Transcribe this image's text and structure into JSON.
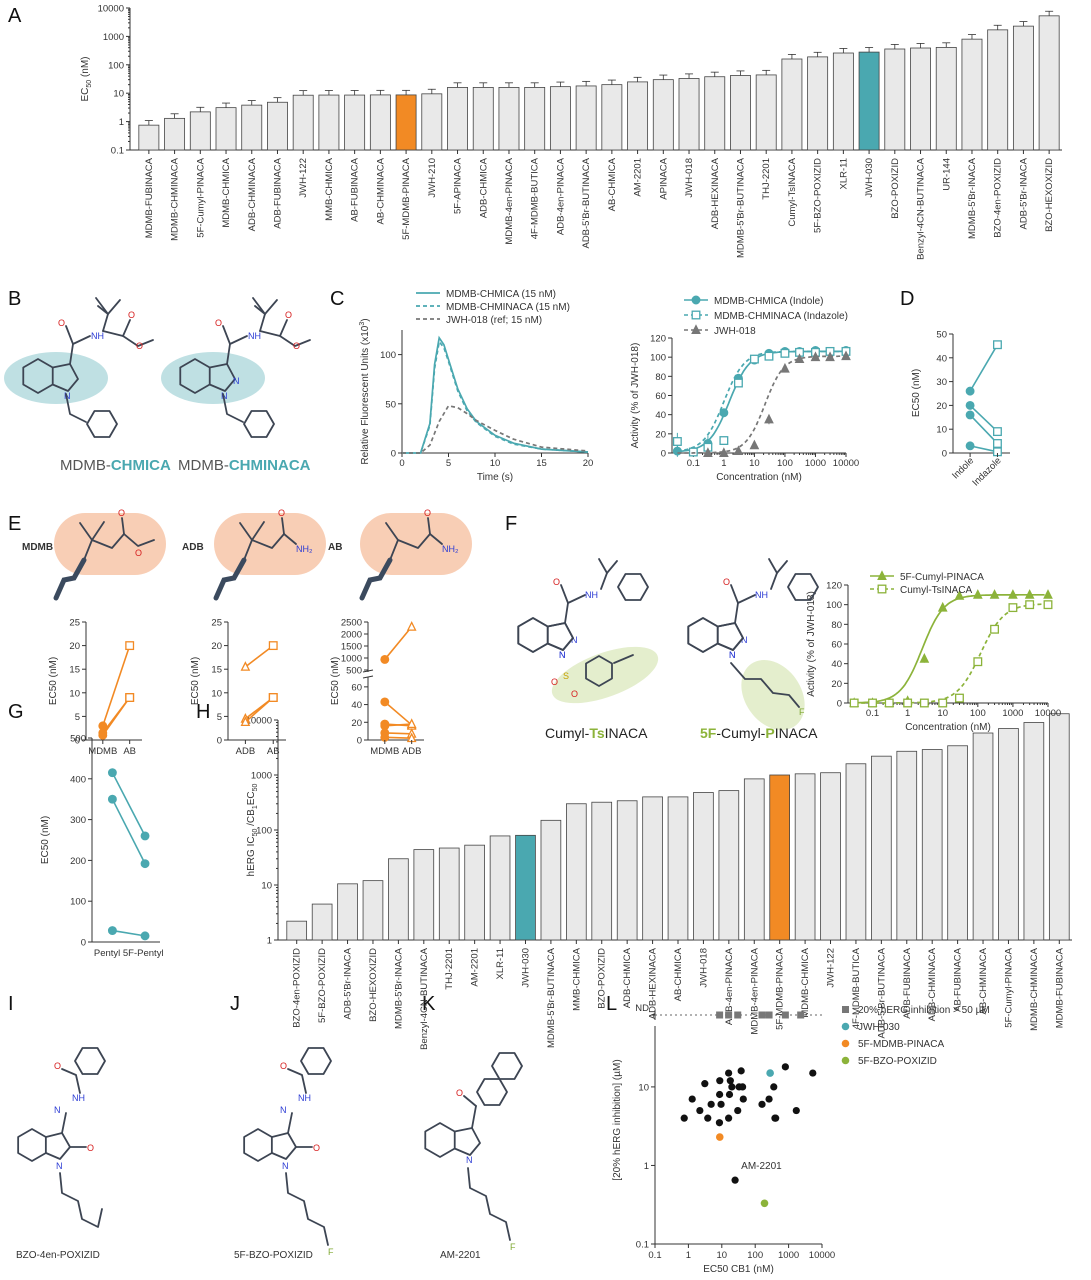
{
  "panels": {
    "A": "A",
    "B": "B",
    "C": "C",
    "D": "D",
    "E": "E",
    "F": "F",
    "G": "G",
    "H": "H",
    "I": "I",
    "J": "J",
    "K": "K",
    "L": "L"
  },
  "colors": {
    "teal": "#4aa8b0",
    "orange": "#f28a24",
    "green": "#8cb33a",
    "gray": "#e9e9e9",
    "black": "#111111",
    "darkgray": "#777777",
    "peach": "#f7c6a8",
    "lightgreen": "#e4eecd",
    "lightteal": "#a9d5da"
  },
  "labels": {
    "B_left": {
      "prefix": "MDMB-",
      "suffix": "CHMICA"
    },
    "B_right": {
      "prefix": "MDMB-",
      "suffix": "CHMINACA"
    },
    "E_mdmb": "MDMB",
    "E_adb": "ADB",
    "E_ab": "AB",
    "F_left": {
      "p1": "Cumyl-",
      "p2": "Ts",
      "p3": "INACA"
    },
    "F_right": {
      "p1": "5F",
      "p2": "-Cumyl-",
      "p3": "P",
      "p4": "INACA"
    },
    "I": "BZO-4en-POXIZID",
    "J": "5F-BZO-POXIZID",
    "K": "AM-2201"
  },
  "chart_data": [
    {
      "panel": "A",
      "type": "bar",
      "ylabel": "EC50 (nM)",
      "yscale": "log",
      "ylim": [
        0.1,
        10000
      ],
      "yticks": [
        "0.1",
        "1",
        "10",
        "100",
        "1000",
        "10000"
      ],
      "categories": [
        "MDMB-FUBINACA",
        "MDMB-CHMINACA",
        "5F-Cumyl-PINACA",
        "MDMB-CHMICA",
        "ADB-CHMINACA",
        "ADB-FUBINACA",
        "JWH-122",
        "MMB-CHMICA",
        "AB-FUBINACA",
        "AB-CHMINACA",
        "5F-MDMB-PINACA",
        "JWH-210",
        "5F-APINACA",
        "ADB-CHMICA",
        "MDMB-4en-PINACA",
        "4F-MDMB-BUTICA",
        "ADB-4en-PINACA",
        "ADB-5'Br-BUTINACA",
        "AB-CHMICA",
        "AM-2201",
        "APINACA",
        "JWH-018",
        "ADB-HEXINACA",
        "MDMB-5'Br-BUTINACA",
        "THJ-2201",
        "Cumyl-TsINACA",
        "5F-BZO-POXIZID",
        "XLR-11",
        "JWH-030",
        "BZO-POXIZID",
        "Benzyl-4CN-BUTINACA",
        "UR-144",
        "MDMB-5'Br-INACA",
        "BZO-4en-POXIZID",
        "ADB-5'Br-INACA",
        "BZO-HEXOXIZID"
      ],
      "values": [
        0.75,
        1.3,
        2.2,
        3.1,
        3.8,
        4.8,
        8.5,
        8.6,
        8.6,
        8.7,
        8.7,
        9.5,
        16,
        16,
        16,
        16,
        17,
        18,
        20,
        25,
        30,
        33,
        38,
        42,
        44,
        160,
        190,
        260,
        280,
        360,
        390,
        410,
        800,
        1700,
        2300,
        5300
      ],
      "highlight": {
        "5F-MDMB-PINACA": "orange",
        "JWH-030": "teal"
      }
    },
    {
      "panel": "C-left",
      "type": "line",
      "ylabel": "Relative Fluorescent Units (x10³)",
      "xlabel": "Time (s)",
      "xlim": [
        0,
        20
      ],
      "ylim": [
        0,
        125
      ],
      "xticks": [
        "0",
        "5",
        "10",
        "15",
        "20"
      ],
      "yticks": [
        "0",
        "50",
        "100"
      ],
      "series": [
        {
          "name": "MDMB-CHMICA (15 nM)",
          "style": "solid",
          "color": "teal",
          "x": [
            0,
            2,
            3,
            3.5,
            4,
            4.5,
            5,
            6,
            7,
            8,
            10,
            12,
            15,
            20
          ],
          "y": [
            0,
            0,
            30,
            90,
            117,
            110,
            95,
            65,
            45,
            32,
            18,
            10,
            4,
            1
          ]
        },
        {
          "name": "MDMB-CHMINACA (15 nM)",
          "style": "dashed",
          "color": "teal",
          "x": [
            0,
            2,
            3,
            3.5,
            4,
            4.5,
            5,
            6,
            7,
            8,
            10,
            12,
            15,
            20
          ],
          "y": [
            0,
            0,
            28,
            86,
            113,
            107,
            93,
            63,
            43,
            31,
            17,
            9,
            4,
            1
          ]
        },
        {
          "name": "JWH-018 (ref; 15 nM)",
          "style": "dashed",
          "color": "darkgray",
          "x": [
            0,
            2,
            3,
            4,
            5,
            6,
            7,
            8,
            10,
            12,
            15,
            20
          ],
          "y": [
            0,
            0,
            8,
            32,
            48,
            46,
            40,
            33,
            23,
            14,
            6,
            2
          ]
        }
      ]
    },
    {
      "panel": "C-right",
      "type": "line",
      "ylabel": "Activity (% of JWH-018)",
      "xlabel": "Concentration (nM)",
      "xscale": "log",
      "xlim": [
        0.02,
        10000
      ],
      "ylim": [
        0,
        120
      ],
      "xticks": [
        "0.1",
        "1",
        "10",
        "100",
        "1000",
        "10000"
      ],
      "yticks": [
        "0",
        "20",
        "40",
        "60",
        "80",
        "100",
        "120"
      ],
      "series": [
        {
          "name": "MDMB-CHMICA (Indole)",
          "marker": "circle",
          "style": "solid",
          "color": "teal",
          "x": [
            0.03,
            0.1,
            0.3,
            1,
            3,
            10,
            30,
            100,
            300,
            1000,
            3000,
            10000
          ],
          "y": [
            2,
            2,
            10,
            42,
            78,
            97,
            104,
            106,
            106,
            107,
            106,
            107
          ],
          "errors": [
            6,
            3,
            8,
            4,
            3,
            2,
            2,
            2,
            2,
            2,
            2,
            2
          ]
        },
        {
          "name": "MDMB-CHMINACA (Indazole)",
          "marker": "square",
          "style": "dashed",
          "color": "teal",
          "x": [
            0.03,
            0.1,
            0.3,
            1,
            3,
            10,
            30,
            100,
            300,
            1000,
            3000,
            10000
          ],
          "y": [
            12,
            1,
            6,
            13,
            73,
            98,
            101,
            104,
            105,
            105,
            106,
            106
          ],
          "errors": [
            9,
            2,
            5,
            4,
            3,
            2,
            2,
            2,
            2,
            2,
            2,
            2
          ]
        },
        {
          "name": "JWH-018",
          "marker": "triangle",
          "style": "dashed",
          "color": "darkgray",
          "x": [
            0.3,
            1,
            3,
            10,
            30,
            100,
            300,
            1000,
            3000,
            10000
          ],
          "y": [
            0,
            0,
            2,
            8,
            35,
            88,
            98,
            100,
            100,
            101
          ],
          "errors": [
            2,
            2,
            2,
            3,
            5,
            4,
            3,
            2,
            2,
            2
          ]
        }
      ]
    },
    {
      "panel": "D",
      "type": "scatter",
      "ylabel": "EC50 (nM)",
      "categories": [
        "Indole",
        "Indazole"
      ],
      "ylim": [
        0,
        50
      ],
      "yticks": [
        "0",
        "10",
        "20",
        "30",
        "40",
        "50"
      ],
      "pairs": [
        [
          26,
          45.5
        ],
        [
          20,
          9
        ],
        [
          16,
          4
        ],
        [
          3,
          0.5
        ]
      ]
    },
    {
      "panel": "E-1",
      "type": "scatter",
      "ylabel": "EC50 (nM)",
      "categories": [
        "MDMB",
        "AB"
      ],
      "ylim": [
        0,
        25
      ],
      "yticks": [
        "0",
        "5",
        "10",
        "15",
        "20",
        "25"
      ],
      "pairs": [
        [
          3,
          20
        ],
        [
          1.5,
          9
        ],
        [
          1,
          9
        ]
      ]
    },
    {
      "panel": "E-2",
      "type": "scatter",
      "ylabel": "EC50 (nM)",
      "categories": [
        "ADB",
        "AB"
      ],
      "ylim": [
        0,
        25
      ],
      "yticks": [
        "0",
        "5",
        "10",
        "15",
        "20",
        "25"
      ],
      "pairs": [
        [
          15.5,
          20
        ],
        [
          4.5,
          9
        ],
        [
          3.8,
          9
        ]
      ]
    },
    {
      "panel": "E-3",
      "type": "scatter",
      "ylabel": "EC50 (nM)",
      "categories": [
        "MDMB",
        "ADB"
      ],
      "yticks": [
        "0",
        "20",
        "40",
        "60",
        "500",
        "1000",
        "1500",
        "2000",
        "2500"
      ],
      "pairs": [
        [
          940,
          2300
        ],
        [
          43,
          17
        ],
        [
          18,
          16
        ],
        [
          16,
          18
        ],
        [
          8,
          7
        ],
        [
          3,
          2
        ]
      ]
    },
    {
      "panel": "F",
      "type": "line",
      "ylabel": "Activity (% of JWH-018)",
      "xlabel": "Concentration (nM)",
      "xscale": "log",
      "xlim": [
        0.02,
        10000
      ],
      "ylim": [
        0,
        120
      ],
      "xticks": [
        "0.01",
        "0.1",
        "1",
        "10",
        "100",
        "1000",
        "10000"
      ],
      "yticks": [
        "0",
        "20",
        "40",
        "60",
        "80",
        "100",
        "120"
      ],
      "series": [
        {
          "name": "5F-Cumyl-PINACA",
          "marker": "triangle",
          "style": "solid",
          "color": "green",
          "x": [
            0.03,
            0.1,
            0.3,
            1,
            3,
            10,
            30,
            100,
            300,
            1000,
            3000,
            10000
          ],
          "y": [
            0,
            0,
            0,
            2,
            45,
            97,
            109,
            110,
            110,
            110,
            110,
            110
          ],
          "errors": [
            1,
            1,
            1,
            1,
            4,
            2,
            2,
            2,
            2,
            2,
            2,
            2
          ]
        },
        {
          "name": "Cumyl-TsINACA",
          "marker": "square",
          "style": "dashed",
          "color": "green",
          "x": [
            0.03,
            0.1,
            0.3,
            1,
            3,
            10,
            30,
            100,
            300,
            1000,
            3000,
            10000
          ],
          "y": [
            0,
            0,
            0,
            0,
            0,
            0,
            5,
            42,
            75,
            97,
            100,
            100
          ],
          "errors": [
            1,
            1,
            1,
            1,
            1,
            1,
            2,
            4,
            3,
            2,
            2,
            2
          ]
        }
      ]
    },
    {
      "panel": "G",
      "type": "scatter",
      "ylabel": "EC50 (nM)",
      "categories": [
        "Pentyl",
        "5F-Pentyl"
      ],
      "ylim": [
        0,
        500
      ],
      "yticks": [
        "0",
        "100",
        "200",
        "300",
        "400",
        "500"
      ],
      "pairs": [
        [
          415,
          260
        ],
        [
          350,
          192
        ],
        [
          28,
          15
        ]
      ]
    },
    {
      "panel": "H",
      "type": "bar",
      "ylabel": "hERG IC50 /CB1EC50",
      "yscale": "log",
      "ylim": [
        1,
        10000
      ],
      "yticks": [
        "1",
        "10",
        "100",
        "1000",
        "10000"
      ],
      "categories": [
        "BZO-4en-POXIZID",
        "5F-BZO-POXIZID",
        "ADB-5'Br-INACA",
        "BZO-HEXOXIZID",
        "MDMB-5'Br-INACA",
        "Benzyl-4CN-BUTINACA",
        "THJ-2201",
        "AM-2201",
        "XLR-11",
        "JWH-030",
        "MDMB-5'Br-BUTINACA",
        "MMB-CHMICA",
        "BZO-POXIZID",
        "ADB-CHMICA",
        "ADB-HEXINACA",
        "AB-CHMICA",
        "JWH-018",
        "ADB-4en-PINACA",
        "MDMB-4en-PINACA",
        "5F-MDMB-PINACA",
        "MDMB-CHMICA",
        "JWH-122",
        "4F-MDMB-BUTICA",
        "ADB-5'Br-BUTINACA",
        "ADB-FUBINACA",
        "ADB-CHMINACA",
        "AB-FUBINACA",
        "AB-CHMINACA",
        "5F-Cumyl-PINACA",
        "MDMB-CHMINACA",
        "MDMB-FUBINACA"
      ],
      "values": [
        2.2,
        4.5,
        10.5,
        12,
        30,
        44,
        47,
        53,
        78,
        80,
        150,
        300,
        320,
        340,
        400,
        400,
        480,
        520,
        850,
        1000,
        1050,
        1100,
        1600,
        2200,
        2700,
        2900,
        3400,
        5800,
        7000,
        9000,
        13000
      ],
      "highlight": {
        "5F-MDMB-PINACA": "orange",
        "JWH-030": "teal"
      }
    },
    {
      "panel": "L",
      "type": "scatter",
      "ylabel": "[20% hERG inhibition] (µM)",
      "xlabel": "EC50 CB1 (nM)",
      "xscale": "log",
      "yscale": "log",
      "xlim": [
        0.1,
        10000
      ],
      "ylim": [
        0.1,
        50
      ],
      "xticks": [
        "0.1",
        "1",
        "10",
        "100",
        "1000",
        "10000"
      ],
      "yticks": [
        "0.1",
        "1",
        "10"
      ],
      "nd_label": "ND",
      "annotation": "AM-2201",
      "legend": [
        "20% hERG inhibition > 50 µM",
        "JWH-030",
        "5F-MDMB-PINACA",
        "5F-BZO-POXIZID"
      ],
      "nd_points_x": [
        8.6,
        16,
        30,
        160,
        260,
        800,
        2300
      ],
      "points": [
        [
          0.75,
          4
        ],
        [
          1.3,
          7
        ],
        [
          2.2,
          5
        ],
        [
          3.1,
          11
        ],
        [
          3.8,
          4
        ],
        [
          4.8,
          6
        ],
        [
          8.5,
          3.5
        ],
        [
          8.6,
          8
        ],
        [
          8.7,
          12
        ],
        [
          9.5,
          6
        ],
        [
          16,
          15
        ],
        [
          16,
          4
        ],
        [
          17,
          8
        ],
        [
          18,
          12
        ],
        [
          20,
          10
        ],
        [
          30,
          5
        ],
        [
          33,
          10
        ],
        [
          38,
          16
        ],
        [
          42,
          10
        ],
        [
          44,
          7
        ],
        [
          160,
          6
        ],
        [
          260,
          7
        ],
        [
          360,
          10
        ],
        [
          390,
          4
        ],
        [
          410,
          4
        ],
        [
          800,
          18
        ],
        [
          1700,
          5
        ],
        [
          5300,
          15
        ],
        [
          25,
          0.65
        ]
      ],
      "highlight_points": [
        {
          "name": "JWH-030",
          "x": 280,
          "y": 15,
          "color": "teal"
        },
        {
          "name": "5F-MDMB-PINACA",
          "x": 8.7,
          "y": 2.3,
          "color": "orange"
        },
        {
          "name": "5F-BZO-POXIZID",
          "x": 190,
          "y": 0.33,
          "color": "green"
        }
      ]
    }
  ]
}
